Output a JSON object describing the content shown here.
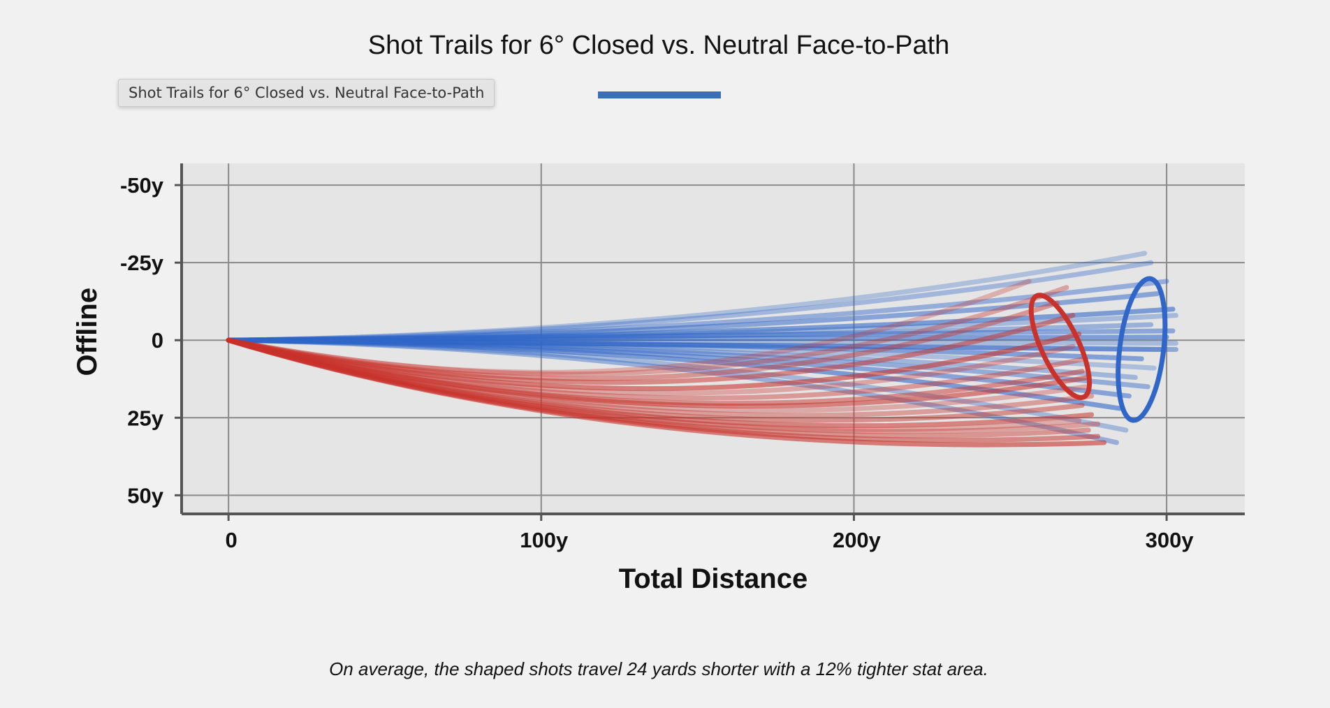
{
  "title": "Shot Trails for 6° Closed vs. Neutral Face-to-Path",
  "tooltip": "Shot Trails for 6° Closed vs. Neutral Face-to-Path",
  "caption": "On average, the shaped shots travel 24 yards shorter with a 12% tighter stat area.",
  "colors": {
    "neutral": "#2f66c8",
    "closed": "#c8322a",
    "legend_bar": "#3a6fb6",
    "plot_bg": "#e5e5e5",
    "page_bg": "#f1f1f1",
    "grid": "#8a8a8a",
    "axis": "#555555"
  },
  "chart_data": {
    "type": "line",
    "title": "Shot Trails for 6° Closed vs. Neutral Face-to-Path",
    "xlabel": "Total Distance",
    "ylabel": "Offline",
    "xlim": [
      -15,
      325
    ],
    "ylim": [
      -57,
      56
    ],
    "y_inverted": true,
    "grid": true,
    "x_ticks": [
      {
        "value": 0,
        "label": "0"
      },
      {
        "value": 100,
        "label": "100y"
      },
      {
        "value": 200,
        "label": "200y"
      },
      {
        "value": 300,
        "label": "300y"
      }
    ],
    "y_ticks": [
      {
        "value": -50,
        "label": "-50y"
      },
      {
        "value": -25,
        "label": "-25y"
      },
      {
        "value": 0,
        "label": "0"
      },
      {
        "value": 25,
        "label": "25y"
      },
      {
        "value": 50,
        "label": "50y"
      }
    ],
    "series": [
      {
        "group": "neutral",
        "trails": [
          {
            "end_x": 293,
            "end_y": -28
          },
          {
            "end_x": 295,
            "end_y": -25
          },
          {
            "end_x": 300,
            "end_y": -19
          },
          {
            "end_x": 297,
            "end_y": -15
          },
          {
            "end_x": 302,
            "end_y": -10
          },
          {
            "end_x": 303,
            "end_y": -8
          },
          {
            "end_x": 295,
            "end_y": -5
          },
          {
            "end_x": 302,
            "end_y": -3
          },
          {
            "end_x": 300,
            "end_y": -1
          },
          {
            "end_x": 303,
            "end_y": 1
          },
          {
            "end_x": 298,
            "end_y": 3
          },
          {
            "end_x": 303,
            "end_y": 3
          },
          {
            "end_x": 292,
            "end_y": 6
          },
          {
            "end_x": 296,
            "end_y": 9
          },
          {
            "end_x": 290,
            "end_y": 12
          },
          {
            "end_x": 294,
            "end_y": 15
          },
          {
            "end_x": 288,
            "end_y": 18
          },
          {
            "end_x": 285,
            "end_y": 22
          },
          {
            "end_x": 287,
            "end_y": 29
          },
          {
            "end_x": 284,
            "end_y": 33
          }
        ],
        "ellipse": {
          "cx": 292,
          "cy": 3,
          "rx": 23,
          "ry": 7,
          "angle_deg": -83
        }
      },
      {
        "group": "closed",
        "trails": [
          {
            "end_x": 256,
            "end_y": -19
          },
          {
            "end_x": 268,
            "end_y": -17
          },
          {
            "end_x": 265,
            "end_y": -12
          },
          {
            "end_x": 270,
            "end_y": -8
          },
          {
            "end_x": 272,
            "end_y": -2
          },
          {
            "end_x": 270,
            "end_y": 2
          },
          {
            "end_x": 274,
            "end_y": 6
          },
          {
            "end_x": 273,
            "end_y": 10
          },
          {
            "end_x": 275,
            "end_y": 12
          },
          {
            "end_x": 274,
            "end_y": 15
          },
          {
            "end_x": 276,
            "end_y": 18
          },
          {
            "end_x": 273,
            "end_y": 21
          },
          {
            "end_x": 276,
            "end_y": 24
          },
          {
            "end_x": 272,
            "end_y": 26
          },
          {
            "end_x": 278,
            "end_y": 27
          },
          {
            "end_x": 275,
            "end_y": 29
          },
          {
            "end_x": 278,
            "end_y": 31
          },
          {
            "end_x": 280,
            "end_y": 33
          }
        ],
        "ellipse": {
          "cx": 266,
          "cy": 2,
          "rx": 18,
          "ry": 6,
          "angle_deg": 65
        }
      }
    ]
  }
}
